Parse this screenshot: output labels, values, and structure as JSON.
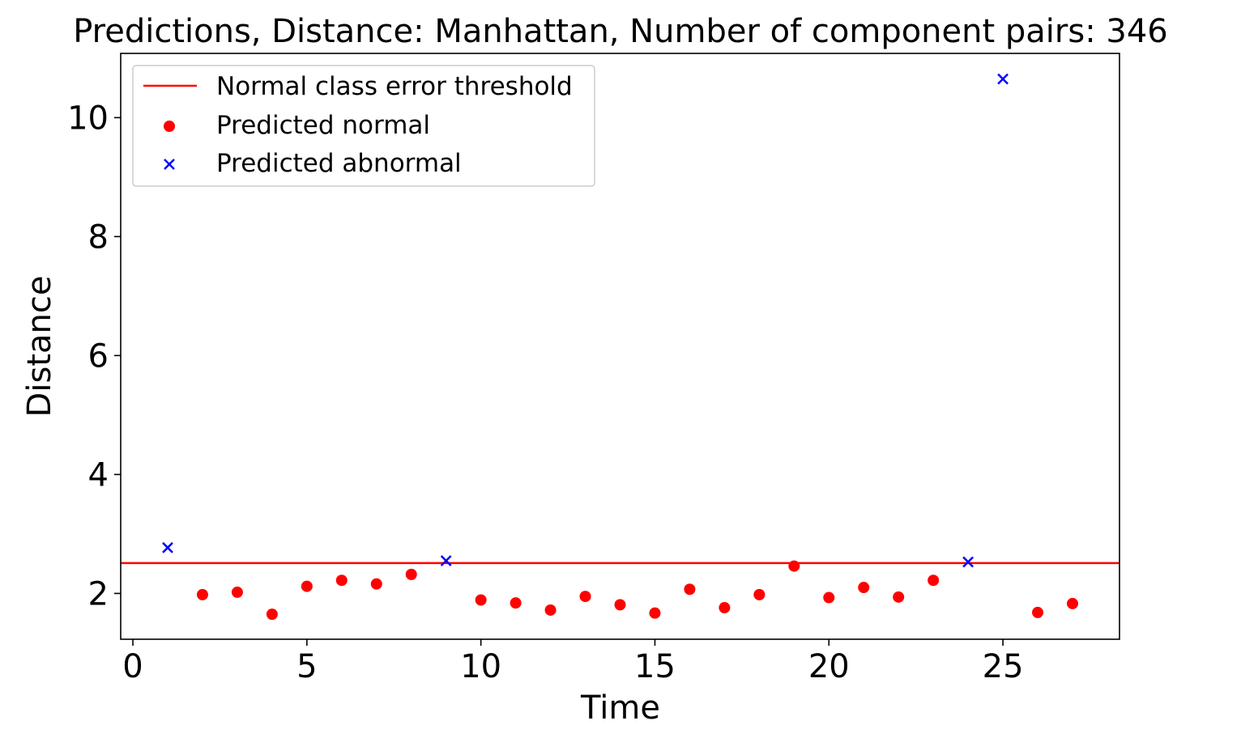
{
  "chart_data": {
    "type": "scatter",
    "title": "Predictions, Distance: Manhattan, Number of component pairs: 346",
    "xlabel": "Time",
    "ylabel": "Distance",
    "xlim": [
      -0.35,
      28.35
    ],
    "ylim": [
      1.23,
      11.08
    ],
    "xticks": [
      0,
      5,
      10,
      15,
      20,
      25
    ],
    "yticks": [
      2,
      4,
      6,
      8,
      10
    ],
    "grid": false,
    "legend_position": "top-left",
    "threshold": {
      "name": "Normal class error threshold",
      "value": 2.51,
      "color": "#ff0000"
    },
    "series": [
      {
        "name": "Predicted normal",
        "marker": "circle",
        "color": "#ff0000",
        "points": [
          {
            "x": 2,
            "y": 1.98
          },
          {
            "x": 3,
            "y": 2.02
          },
          {
            "x": 4,
            "y": 1.65
          },
          {
            "x": 5,
            "y": 2.12
          },
          {
            "x": 6,
            "y": 2.22
          },
          {
            "x": 7,
            "y": 2.16
          },
          {
            "x": 8,
            "y": 2.32
          },
          {
            "x": 10,
            "y": 1.89
          },
          {
            "x": 11,
            "y": 1.84
          },
          {
            "x": 12,
            "y": 1.72
          },
          {
            "x": 13,
            "y": 1.95
          },
          {
            "x": 14,
            "y": 1.81
          },
          {
            "x": 15,
            "y": 1.67
          },
          {
            "x": 16,
            "y": 2.07
          },
          {
            "x": 17,
            "y": 1.76
          },
          {
            "x": 18,
            "y": 1.98
          },
          {
            "x": 19,
            "y": 2.46
          },
          {
            "x": 20,
            "y": 1.93
          },
          {
            "x": 21,
            "y": 2.1
          },
          {
            "x": 22,
            "y": 1.94
          },
          {
            "x": 23,
            "y": 2.22
          },
          {
            "x": 26,
            "y": 1.68
          },
          {
            "x": 27,
            "y": 1.83
          }
        ]
      },
      {
        "name": "Predicted abnormal",
        "marker": "x",
        "color": "#0000ff",
        "points": [
          {
            "x": 1,
            "y": 2.77
          },
          {
            "x": 9,
            "y": 2.55
          },
          {
            "x": 24,
            "y": 2.53
          },
          {
            "x": 25,
            "y": 10.65
          }
        ]
      }
    ]
  }
}
